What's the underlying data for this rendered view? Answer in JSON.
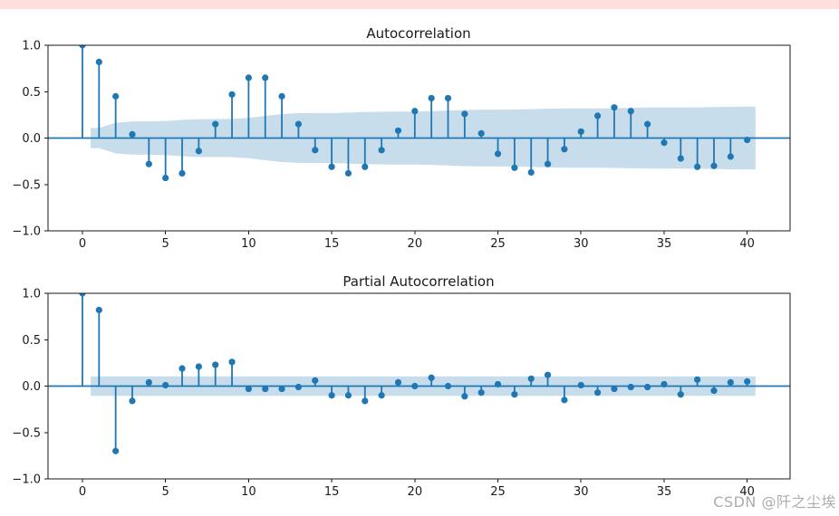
{
  "page": {
    "background": "#ffffff",
    "top_banner_color": "#ffdede"
  },
  "watermark": {
    "text": "CSDN @阡之尘埃",
    "color": "#a8a8a8"
  },
  "colors": {
    "accent_blue": "#1f77b4",
    "confidence_band": "rgba(31,119,180,0.25)",
    "axis_line": "#1a1a1a",
    "text": "#1a1a1a"
  },
  "chart_data": [
    {
      "type": "stem",
      "title": "Autocorrelation",
      "lags": [
        0,
        1,
        2,
        3,
        4,
        5,
        6,
        7,
        8,
        9,
        10,
        11,
        12,
        13,
        14,
        15,
        16,
        17,
        18,
        19,
        20,
        21,
        22,
        23,
        24,
        25,
        26,
        27,
        28,
        29,
        30,
        31,
        32,
        33,
        34,
        35,
        36,
        37,
        38,
        39,
        40
      ],
      "values": [
        1.0,
        0.82,
        0.45,
        0.04,
        -0.28,
        -0.43,
        -0.38,
        -0.14,
        0.15,
        0.47,
        0.65,
        0.65,
        0.45,
        0.15,
        -0.13,
        -0.31,
        -0.38,
        -0.31,
        -0.13,
        0.08,
        0.29,
        0.43,
        0.43,
        0.26,
        0.05,
        -0.17,
        -0.32,
        -0.37,
        -0.28,
        -0.12,
        0.07,
        0.24,
        0.33,
        0.29,
        0.15,
        -0.05,
        -0.22,
        -0.31,
        -0.3,
        -0.2,
        -0.02
      ],
      "conf_band": {
        "symmetric": true,
        "x": [
          0.5,
          1,
          2,
          3,
          4,
          5,
          6,
          7,
          8,
          9,
          10,
          11,
          12,
          13,
          14,
          15,
          16,
          17,
          18,
          19,
          20,
          21,
          22,
          23,
          24,
          25,
          26,
          27,
          28,
          29,
          30,
          31,
          32,
          33,
          34,
          35,
          36,
          37,
          38,
          39,
          40,
          40.5
        ],
        "hi": [
          0.108,
          0.108,
          0.165,
          0.179,
          0.179,
          0.184,
          0.196,
          0.204,
          0.205,
          0.206,
          0.217,
          0.239,
          0.259,
          0.268,
          0.269,
          0.27,
          0.274,
          0.28,
          0.284,
          0.285,
          0.285,
          0.289,
          0.296,
          0.303,
          0.306,
          0.306,
          0.307,
          0.311,
          0.316,
          0.319,
          0.319,
          0.32,
          0.322,
          0.326,
          0.329,
          0.329,
          0.329,
          0.331,
          0.334,
          0.337,
          0.339,
          0.339
        ]
      },
      "xticks": [
        0,
        5,
        10,
        15,
        20,
        25,
        30,
        35,
        40
      ],
      "ytick_labels": [
        "1.0",
        "0.5",
        "0.0",
        "−0.5",
        "−1.0"
      ],
      "ytick_values": [
        1.0,
        0.5,
        0.0,
        -0.5,
        -1.0
      ],
      "xlim": [
        -2.07,
        42.58
      ],
      "ylim": [
        -1.0,
        1.0
      ],
      "grid": false,
      "legend": "none"
    },
    {
      "type": "stem",
      "title": "Partial Autocorrelation",
      "lags": [
        0,
        1,
        2,
        3,
        4,
        5,
        6,
        7,
        8,
        9,
        10,
        11,
        12,
        13,
        14,
        15,
        16,
        17,
        18,
        19,
        20,
        21,
        22,
        23,
        24,
        25,
        26,
        27,
        28,
        29,
        30,
        31,
        32,
        33,
        34,
        35,
        36,
        37,
        38,
        39,
        40
      ],
      "values": [
        1.0,
        0.82,
        -0.7,
        -0.16,
        0.04,
        0.01,
        0.19,
        0.21,
        0.23,
        0.26,
        -0.03,
        -0.03,
        -0.03,
        -0.01,
        0.06,
        -0.1,
        -0.1,
        -0.16,
        -0.1,
        0.04,
        0.0,
        0.09,
        0.0,
        -0.11,
        -0.07,
        0.02,
        -0.09,
        0.08,
        0.12,
        -0.15,
        0.01,
        -0.07,
        -0.03,
        -0.01,
        -0.01,
        0.02,
        -0.09,
        0.07,
        -0.05,
        0.04,
        0.05
      ],
      "conf_band": {
        "symmetric": true,
        "x": [
          0.5,
          40.5
        ],
        "hi": [
          0.105,
          0.105
        ]
      },
      "xticks": [
        0,
        5,
        10,
        15,
        20,
        25,
        30,
        35,
        40
      ],
      "ytick_labels": [
        "1.0",
        "0.5",
        "0.0",
        "−0.5",
        "−1.0"
      ],
      "ytick_values": [
        1.0,
        0.5,
        0.0,
        -0.5,
        -1.0
      ],
      "xlim": [
        -2.07,
        42.58
      ],
      "ylim": [
        -1.0,
        1.0
      ],
      "grid": false,
      "legend": "none"
    }
  ]
}
